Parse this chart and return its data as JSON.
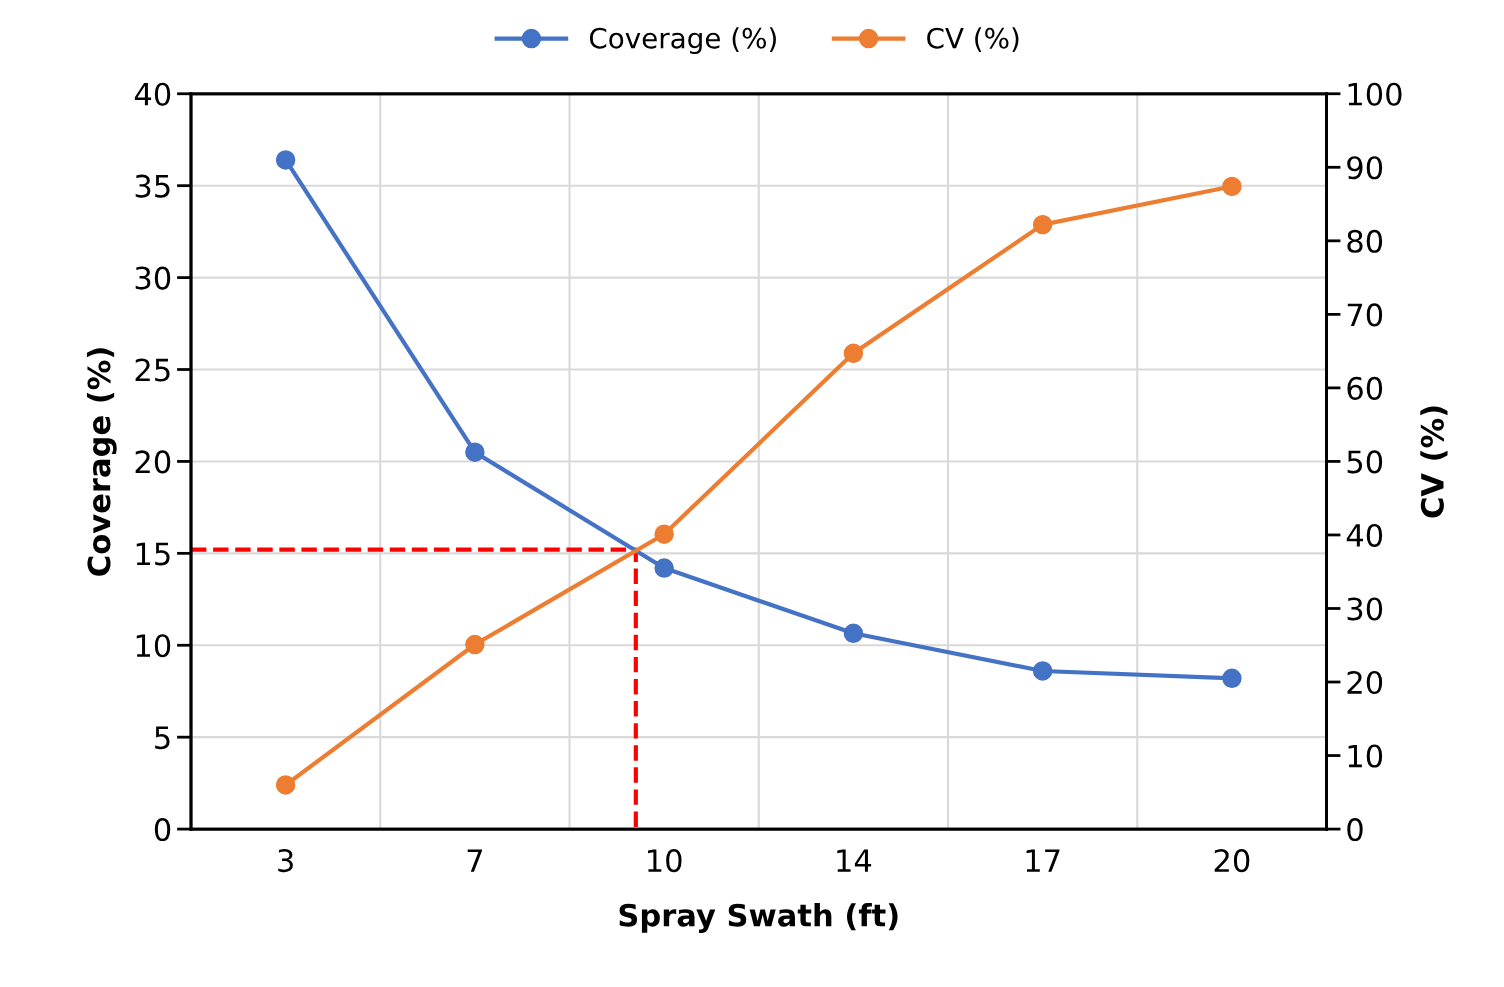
{
  "chart_data": {
    "type": "line",
    "xlabel": "Spray Swath (ft)",
    "ylabel": "Coverage (%)",
    "y2label": "CV (%)",
    "categories": [
      "3",
      "7",
      "10",
      "14",
      "17",
      "20"
    ],
    "series": [
      {
        "name": "Coverage (%)",
        "color": "#4472c4",
        "values": [
          36.4,
          20.5,
          14.2,
          10.65,
          8.6,
          8.2
        ]
      },
      {
        "name": "CV (%)",
        "color": "#ed7d31",
        "axis": "y2",
        "values": [
          6.0,
          25.1,
          40.1,
          64.7,
          82.2,
          87.4
        ]
      }
    ],
    "ylim": [
      0,
      40
    ],
    "yticks": [
      0,
      5,
      10,
      15,
      20,
      25,
      30,
      35,
      40
    ],
    "y2lim": [
      0,
      100
    ],
    "y2ticks": [
      0,
      10,
      20,
      30,
      40,
      50,
      60,
      70,
      80,
      90,
      100
    ],
    "ref_lines": [
      {
        "axis": "y",
        "value": 15.2,
        "color": "#ff0000",
        "line_style": "dashed"
      }
    ],
    "grid": true,
    "legend": "top",
    "marker": "circle",
    "line_style": "solid"
  }
}
